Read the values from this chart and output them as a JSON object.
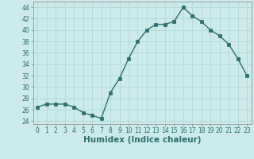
{
  "x": [
    0,
    1,
    2,
    3,
    4,
    5,
    6,
    7,
    8,
    9,
    10,
    11,
    12,
    13,
    14,
    15,
    16,
    17,
    18,
    19,
    20,
    21,
    22,
    23
  ],
  "y": [
    26.5,
    27,
    27,
    27,
    26.5,
    25.5,
    25,
    24.5,
    29,
    31.5,
    35,
    38,
    40,
    41,
    41,
    41.5,
    44,
    42.5,
    41.5,
    40,
    39,
    37.5,
    35,
    32
  ],
  "line_color": "#2d6e6e",
  "marker": "s",
  "marker_size": 2.5,
  "background_color": "#cceaea",
  "grid_color": "#b0d8d8",
  "xlabel": "Humidex (Indice chaleur)",
  "xlim": [
    -0.5,
    23.5
  ],
  "ylim": [
    23.5,
    45
  ],
  "yticks": [
    24,
    26,
    28,
    30,
    32,
    34,
    36,
    38,
    40,
    42,
    44
  ],
  "xticks": [
    0,
    1,
    2,
    3,
    4,
    5,
    6,
    7,
    8,
    9,
    10,
    11,
    12,
    13,
    14,
    15,
    16,
    17,
    18,
    19,
    20,
    21,
    22,
    23
  ],
  "tick_fontsize": 5.5,
  "xlabel_fontsize": 7.5,
  "linewidth": 1.0
}
